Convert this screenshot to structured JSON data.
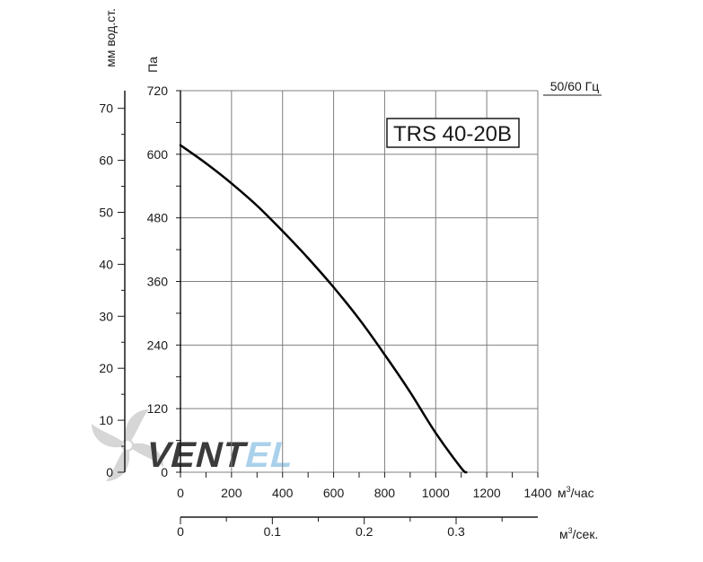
{
  "chart_data": {
    "type": "line",
    "title": "",
    "model_label": "TRS 40-20B",
    "frequency_label": "50/60 Гц",
    "x_primary": {
      "label": "м³/час",
      "label_base": "м",
      "label_sup": "3",
      "label_tail": "/час",
      "range": [
        0,
        1400
      ],
      "ticks": [
        0,
        200,
        400,
        600,
        800,
        1000,
        1200,
        1400
      ]
    },
    "x_secondary": {
      "label": "м³/сек.",
      "label_base": "м",
      "label_sup": "3",
      "label_tail": "/сек.",
      "range": [
        0,
        0.3889
      ],
      "ticks": [
        0,
        0.1,
        0.2,
        0.3
      ],
      "tick_labels": [
        "0",
        "0.1",
        "0.2",
        "0.3"
      ]
    },
    "y_primary": {
      "label": "Па",
      "range": [
        0,
        720
      ],
      "ticks": [
        0,
        120,
        240,
        360,
        480,
        600,
        720
      ]
    },
    "y_secondary": {
      "label": "мм вод.ст.",
      "range": [
        0,
        73.4
      ],
      "ticks": [
        0,
        10,
        20,
        30,
        40,
        50,
        60,
        70
      ]
    },
    "grid": true,
    "series": [
      {
        "x": [
          0,
          100,
          200,
          300,
          400,
          500,
          600,
          700,
          800,
          900,
          1000,
          1100,
          1120
        ],
        "y": [
          617,
          583,
          545,
          503,
          455,
          404,
          349,
          289,
          222,
          151,
          74,
          8,
          0
        ]
      }
    ],
    "watermark": "VENTEL",
    "colors": {
      "curve": "#000000",
      "grid": "#7f7f7f",
      "axis": "#1a1a1a",
      "watermark_gray": "#c8c8c8",
      "watermark_blue": "#9cc9e8"
    }
  }
}
